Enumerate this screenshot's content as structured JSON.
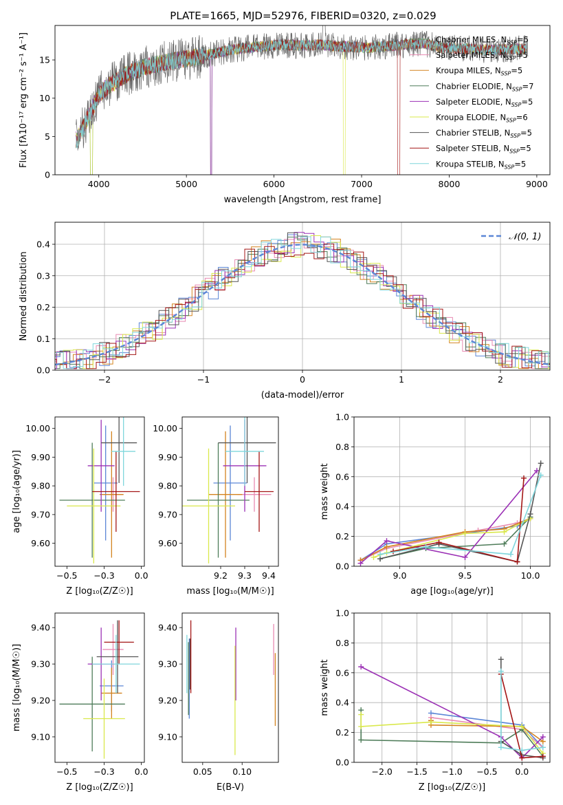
{
  "figure": {
    "title": "PLATE=1665, MJD=52976, FIBERID=0320, z=0.029"
  },
  "chart_data": [
    {
      "id": "spectrum",
      "type": "line",
      "xlabel": "wavelength [Angstrom, rest frame]",
      "ylabel": "Flux [fλ10⁻¹⁷ erg cm⁻² s⁻¹ A⁻¹]",
      "xlim": [
        3500,
        9150
      ],
      "ylim": [
        0,
        19.5
      ],
      "xticks": [
        4000,
        5000,
        6000,
        7000,
        8000,
        9000
      ],
      "yticks": [
        0,
        5,
        10,
        15
      ],
      "grid": false,
      "legend_position": "top-right",
      "continuum": {
        "x": [
          3750,
          3900,
          4000,
          4100,
          4300,
          4500,
          4700,
          4900,
          5100,
          5300,
          5500,
          5700,
          5900,
          6100,
          6300,
          6500,
          6700,
          6900,
          7100,
          7300,
          7500,
          7700,
          7900,
          8100,
          8300,
          8500,
          8700,
          8900
        ],
        "y": [
          4.5,
          8.0,
          10.5,
          11.5,
          13.0,
          14.0,
          14.5,
          15.0,
          15.3,
          15.8,
          16.3,
          16.6,
          16.8,
          17.0,
          16.9,
          17.0,
          16.8,
          16.7,
          16.6,
          16.8,
          17.0,
          17.2,
          16.6,
          16.5,
          16.4,
          16.3,
          16.4,
          16.5
        ]
      },
      "series": [
        {
          "name": "Chabrier MILES, N$_{SSP}$=5",
          "color": "#6b9a6b"
        },
        {
          "name": "Salpeter MILES, N$_{SSP}$=5",
          "color": "#e88ab2"
        },
        {
          "name": "Kroupa MILES, N$_{SSP}$=5",
          "color": "#d4831f"
        },
        {
          "name": "Chabrier ELODIE, N$_{SSP}$=7",
          "color": "#4e7c59"
        },
        {
          "name": "Salpeter ELODIE, N$_{SSP}$=5",
          "color": "#9b30b5"
        },
        {
          "name": "Kroupa ELODIE, N$_{SSP}$=6",
          "color": "#d9e84a"
        },
        {
          "name": "Chabrier STELIB, N$_{SSP}$=5",
          "color": "#555555"
        },
        {
          "name": "Salpeter STELIB, N$_{SSP}$=5",
          "color": "#a31515"
        },
        {
          "name": "Kroupa STELIB, N$_{SSP}$=5",
          "color": "#7fd6dc"
        }
      ],
      "annotations": [
        {
          "label": "spike",
          "x": 6570,
          "y": 19.5
        },
        {
          "label": "dropout",
          "x": 5280,
          "y": 0
        },
        {
          "label": "dropout",
          "x": 6800,
          "y": 0
        },
        {
          "label": "dropout",
          "x": 7420,
          "y": 0
        },
        {
          "label": "dropout",
          "x": 3910,
          "y": 0
        }
      ]
    },
    {
      "id": "residuals",
      "type": "histogram",
      "xlabel": "(data-model)/error",
      "ylabel": "Normed distribution",
      "xlim": [
        -2.5,
        2.5
      ],
      "ylim": [
        0,
        0.47
      ],
      "xticks": [
        -2,
        -1,
        0,
        1,
        2
      ],
      "yticks": [
        0.0,
        0.1,
        0.2,
        0.3,
        0.4
      ],
      "grid": true,
      "legend_position": "top-right",
      "reference": {
        "name": "$\\mathcal{N}(0,1)$",
        "color": "#5b86d6"
      },
      "bin_width": 0.1,
      "colors": [
        "#5b86d6",
        "#e88ab2",
        "#d4831f",
        "#4e7c59",
        "#9b30b5",
        "#d9e84a",
        "#555555",
        "#a31515",
        "#7fd6dc"
      ]
    },
    {
      "id": "age-vs-Z",
      "type": "errorbar",
      "xlabel": "Z [log₁₀(Z/Z☉)]",
      "ylabel": "age  [log₁₀(age/yr)]",
      "xlim": [
        -0.58,
        0.02
      ],
      "ylim": [
        9.52,
        10.04
      ],
      "xticks": [
        -0.5,
        -0.25,
        0.0
      ],
      "yticks": [
        9.6,
        9.7,
        9.8,
        9.9,
        10.0
      ],
      "points": [
        {
          "x": -0.24,
          "y": 9.81,
          "xerr": 0.08,
          "yerr": 0.2,
          "color": "#5b86d6"
        },
        {
          "x": -0.19,
          "y": 9.77,
          "xerr": 0.07,
          "yerr": 0.06,
          "color": "#e88ab2"
        },
        {
          "x": -0.2,
          "y": 9.77,
          "xerr": 0.08,
          "yerr": 0.22,
          "color": "#d4831f"
        },
        {
          "x": -0.33,
          "y": 9.75,
          "xerr": 0.22,
          "yerr": 0.2,
          "color": "#4e7c59"
        },
        {
          "x": -0.27,
          "y": 9.87,
          "xerr": 0.09,
          "yerr": 0.16,
          "color": "#9b30b5"
        },
        {
          "x": -0.32,
          "y": 9.73,
          "xerr": 0.18,
          "yerr": 0.2,
          "color": "#d9e84a"
        },
        {
          "x": -0.15,
          "y": 9.95,
          "xerr": 0.12,
          "yerr": 0.14,
          "color": "#555555"
        },
        {
          "x": -0.17,
          "y": 9.78,
          "xerr": 0.16,
          "yerr": 0.14,
          "color": "#a31515"
        },
        {
          "x": -0.12,
          "y": 9.92,
          "xerr": 0.08,
          "yerr": 0.12,
          "color": "#7fd6dc"
        }
      ]
    },
    {
      "id": "age-vs-mass",
      "type": "errorbar",
      "xlabel": "mass [log₁₀(M/M☉)]",
      "ylabel": "",
      "xlim": [
        9.04,
        9.44
      ],
      "ylim": [
        9.52,
        10.04
      ],
      "xticks": [
        9.2,
        9.3,
        9.4
      ],
      "yticks": [
        9.6,
        9.7,
        9.8,
        9.9,
        10.0
      ],
      "points": [
        {
          "x": 9.24,
          "y": 9.81,
          "xerr": 0.07,
          "yerr": 0.2,
          "color": "#5b86d6"
        },
        {
          "x": 9.34,
          "y": 9.77,
          "xerr": 0.07,
          "yerr": 0.06,
          "color": "#e88ab2"
        },
        {
          "x": 9.22,
          "y": 9.77,
          "xerr": 0.07,
          "yerr": 0.22,
          "color": "#d4831f"
        },
        {
          "x": 9.19,
          "y": 9.75,
          "xerr": 0.13,
          "yerr": 0.2,
          "color": "#4e7c59"
        },
        {
          "x": 9.3,
          "y": 9.87,
          "xerr": 0.09,
          "yerr": 0.16,
          "color": "#9b30b5"
        },
        {
          "x": 9.15,
          "y": 9.73,
          "xerr": 0.11,
          "yerr": 0.2,
          "color": "#d9e84a"
        },
        {
          "x": 9.31,
          "y": 9.95,
          "xerr": 0.12,
          "yerr": 0.14,
          "color": "#555555"
        },
        {
          "x": 9.36,
          "y": 9.78,
          "xerr": 0.06,
          "yerr": 0.14,
          "color": "#a31515"
        },
        {
          "x": 9.3,
          "y": 9.92,
          "xerr": 0.08,
          "yerr": 0.12,
          "color": "#7fd6dc"
        }
      ]
    },
    {
      "id": "massweight-vs-age",
      "type": "line",
      "xlabel": "age  [log₁₀(age/yr)]",
      "ylabel": "mass weight",
      "xlim": [
        8.65,
        10.15
      ],
      "ylim": [
        0.0,
        1.0
      ],
      "xticks": [
        9.0,
        9.5,
        10.0
      ],
      "yticks": [
        0.0,
        0.2,
        0.4,
        0.6,
        0.8,
        1.0
      ],
      "grid": true,
      "series": [
        {
          "color": "#5b86d6",
          "x": [
            8.7,
            8.9,
            9.5,
            9.9,
            10.0
          ],
          "y": [
            0.04,
            0.15,
            0.22,
            0.27,
            0.32
          ]
        },
        {
          "color": "#e88ab2",
          "x": [
            8.7,
            8.9,
            9.6,
            9.9,
            10.0
          ],
          "y": [
            0.04,
            0.12,
            0.24,
            0.29,
            0.32
          ]
        },
        {
          "color": "#d4831f",
          "x": [
            8.7,
            8.9,
            9.5,
            9.8,
            10.0
          ],
          "y": [
            0.04,
            0.13,
            0.23,
            0.25,
            0.32
          ]
        },
        {
          "color": "#4e7c59",
          "x": [
            8.85,
            9.2,
            9.8,
            10.0
          ],
          "y": [
            0.05,
            0.12,
            0.15,
            0.33
          ]
        },
        {
          "color": "#9b30b5",
          "x": [
            8.7,
            8.9,
            9.5,
            10.05
          ],
          "y": [
            0.02,
            0.17,
            0.06,
            0.64
          ]
        },
        {
          "color": "#d9e84a",
          "x": [
            8.8,
            8.9,
            9.5,
            9.8,
            10.0
          ],
          "y": [
            0.06,
            0.09,
            0.22,
            0.23,
            0.32
          ]
        },
        {
          "color": "#555555",
          "x": [
            8.85,
            9.3,
            9.9,
            10.0,
            10.08
          ],
          "y": [
            0.05,
            0.15,
            0.03,
            0.35,
            0.69
          ]
        },
        {
          "color": "#a31515",
          "x": [
            8.95,
            9.3,
            9.9,
            9.95
          ],
          "y": [
            0.1,
            0.16,
            0.03,
            0.59
          ]
        },
        {
          "color": "#7fd6dc",
          "x": [
            8.85,
            9.2,
            9.85,
            10.08
          ],
          "y": [
            0.08,
            0.13,
            0.08,
            0.61
          ]
        }
      ]
    },
    {
      "id": "mass-vs-Z",
      "type": "errorbar",
      "xlabel": "Z [log₁₀(Z/Z☉)]",
      "ylabel": "mass [log₁₀(M/M☉)]",
      "xlim": [
        -0.58,
        0.02
      ],
      "ylim": [
        9.03,
        9.44
      ],
      "xticks": [
        -0.5,
        -0.25,
        0.0
      ],
      "yticks": [
        9.1,
        9.2,
        9.3,
        9.4
      ],
      "points": [
        {
          "x": -0.2,
          "y": 9.24,
          "xerr": 0.08,
          "yerr": 0.07,
          "color": "#5b86d6"
        },
        {
          "x": -0.19,
          "y": 9.34,
          "xerr": 0.07,
          "yerr": 0.07,
          "color": "#e88ab2"
        },
        {
          "x": -0.2,
          "y": 9.22,
          "xerr": 0.07,
          "yerr": 0.07,
          "color": "#d4831f"
        },
        {
          "x": -0.33,
          "y": 9.19,
          "xerr": 0.22,
          "yerr": 0.13,
          "color": "#4e7c59"
        },
        {
          "x": -0.27,
          "y": 9.3,
          "xerr": 0.09,
          "yerr": 0.1,
          "color": "#9b30b5"
        },
        {
          "x": -0.25,
          "y": 9.15,
          "xerr": 0.14,
          "yerr": 0.11,
          "color": "#d9e84a"
        },
        {
          "x": -0.16,
          "y": 9.32,
          "xerr": 0.14,
          "yerr": 0.1,
          "color": "#555555"
        },
        {
          "x": -0.15,
          "y": 9.36,
          "xerr": 0.1,
          "yerr": 0.06,
          "color": "#a31515"
        },
        {
          "x": -0.17,
          "y": 9.3,
          "xerr": 0.16,
          "yerr": 0.08,
          "color": "#7fd6dc"
        }
      ]
    },
    {
      "id": "mass-vs-EBV",
      "type": "errorbar",
      "xlabel": "E(B-V)",
      "ylabel": "",
      "xlim": [
        0.024,
        0.146
      ],
      "ylim": [
        9.03,
        9.44
      ],
      "xticks": [
        0.05,
        0.1
      ],
      "yticks": [
        9.1,
        9.2,
        9.3,
        9.4
      ],
      "points": [
        {
          "x": 0.033,
          "y": 9.26,
          "xerr": 0.0,
          "yerr": 0.11,
          "color": "#5b86d6"
        },
        {
          "x": 0.14,
          "y": 9.34,
          "xerr": 0.0,
          "yerr": 0.07,
          "color": "#e88ab2"
        },
        {
          "x": 0.142,
          "y": 9.23,
          "xerr": 0.0,
          "yerr": 0.1,
          "color": "#d4831f"
        },
        {
          "x": 0.032,
          "y": 9.26,
          "xerr": 0.0,
          "yerr": 0.1,
          "color": "#4e7c59"
        },
        {
          "x": 0.092,
          "y": 9.3,
          "xerr": 0.0,
          "yerr": 0.1,
          "color": "#9b30b5"
        },
        {
          "x": 0.091,
          "y": 9.2,
          "xerr": 0.0,
          "yerr": 0.15,
          "color": "#d9e84a"
        },
        {
          "x": 0.034,
          "y": 9.3,
          "xerr": 0.0,
          "yerr": 0.07,
          "color": "#555555"
        },
        {
          "x": 0.035,
          "y": 9.32,
          "xerr": 0.0,
          "yerr": 0.1,
          "color": "#a31515"
        },
        {
          "x": 0.03,
          "y": 9.3,
          "xerr": 0.0,
          "yerr": 0.08,
          "color": "#7fd6dc"
        }
      ]
    },
    {
      "id": "massweight-vs-Z",
      "type": "line",
      "xlabel": "Z [log₁₀(Z/Z☉)]",
      "ylabel": "mass weight",
      "xlim": [
        -2.4,
        0.4
      ],
      "ylim": [
        0.0,
        1.0
      ],
      "xticks": [
        -2.0,
        -1.5,
        -1.0,
        -0.5,
        0.0
      ],
      "yticks": [
        0.0,
        0.2,
        0.4,
        0.6,
        0.8,
        1.0
      ],
      "grid": true,
      "series": [
        {
          "color": "#5b86d6",
          "x": [
            -1.3,
            0.0,
            0.3
          ],
          "y": [
            0.33,
            0.25,
            0.1
          ]
        },
        {
          "color": "#e88ab2",
          "x": [
            -1.3,
            0.0,
            0.3
          ],
          "y": [
            0.3,
            0.22,
            0.1
          ]
        },
        {
          "color": "#d4831f",
          "x": [
            -1.3,
            -1.3,
            0.0,
            0.3
          ],
          "y": [
            0.28,
            0.25,
            0.24,
            0.14
          ]
        },
        {
          "color": "#4e7c59",
          "x": [
            -2.3,
            -2.3,
            -0.3,
            0.0,
            0.3
          ],
          "y": [
            0.35,
            0.15,
            0.13,
            0.22,
            0.04
          ]
        },
        {
          "color": "#9b30b5",
          "x": [
            -2.3,
            -0.3,
            0.0,
            0.3
          ],
          "y": [
            0.64,
            0.17,
            0.03,
            0.17
          ]
        },
        {
          "color": "#d9e84a",
          "x": [
            -2.3,
            -2.3,
            -1.3,
            0.0,
            0.3
          ],
          "y": [
            0.32,
            0.24,
            0.27,
            0.24,
            0.06
          ]
        },
        {
          "color": "#555555",
          "x": [
            -0.3,
            -0.3,
            0.0,
            0.3
          ],
          "y": [
            0.69,
            0.14,
            0.05,
            0.03
          ]
        },
        {
          "color": "#a31515",
          "x": [
            -0.3,
            0.0,
            0.3
          ],
          "y": [
            0.59,
            0.03,
            0.04
          ]
        },
        {
          "color": "#7fd6dc",
          "x": [
            -0.3,
            -0.3,
            0.0,
            0.3
          ],
          "y": [
            0.61,
            0.1,
            0.08,
            0.1
          ]
        }
      ]
    }
  ]
}
